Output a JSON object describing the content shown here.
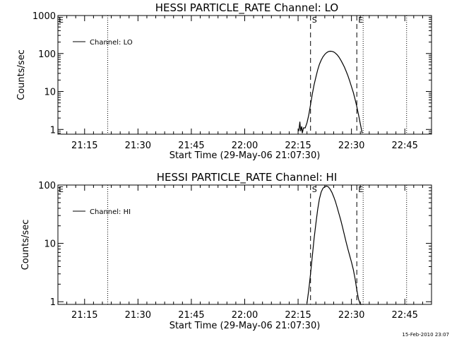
{
  "chart_data": [
    {
      "type": "line",
      "title": "HESSI PARTICLE_RATE Channel: LO",
      "xlabel": "Start Time (29-May-06 21:07:30)",
      "ylabel": "Counts/sec",
      "x_unit": "minutes after 21:07:30",
      "xlim": [
        0,
        105
      ],
      "ylim": [
        0.75,
        1000
      ],
      "yscale": "log",
      "x_ticks": [
        7.5,
        22.5,
        37.5,
        52.5,
        67.5,
        82.5,
        97.5
      ],
      "x_tick_labels": [
        "21:15",
        "21:30",
        "21:45",
        "22:00",
        "22:15",
        "22:30",
        "22:45"
      ],
      "y_ticks": [
        1,
        10,
        100,
        1000
      ],
      "y_tick_labels": [
        "1",
        "10",
        "100",
        "1000"
      ],
      "legend": {
        "label": "Channel: LO",
        "position": "top-left"
      },
      "markers": [
        {
          "label": "S",
          "x": 71,
          "style": "dashed"
        },
        {
          "label": "E",
          "x": 84,
          "style": "dashed-dotted"
        }
      ],
      "dotted_lines_x": [
        14,
        98
      ],
      "left_marker_label": "E",
      "series": [
        {
          "name": "Channel: LO",
          "x": [
            67.7,
            68.0,
            68.2,
            68.5,
            68.7,
            69.0,
            69.5,
            70.0,
            70.5,
            71.0,
            71.5,
            72.0,
            72.5,
            73.0,
            73.5,
            74.0,
            74.5,
            75.0,
            75.5,
            76.0,
            76.5,
            77.0,
            77.5,
            78.0,
            78.5,
            79.0,
            79.5,
            80.0,
            80.5,
            81.0,
            81.5,
            82.0,
            82.5,
            83.0,
            83.5,
            84.0,
            84.5,
            85.0,
            85.5
          ],
          "y": [
            0.9,
            1.6,
            0.9,
            1.2,
            0.8,
            1.1,
            1.1,
            1.5,
            2.4,
            4.5,
            8.5,
            15,
            24,
            37,
            52,
            67,
            82,
            95,
            105,
            112,
            115,
            114,
            110,
            102,
            92,
            80,
            67,
            55,
            44,
            34,
            26,
            19,
            13.5,
            9.5,
            6.3,
            4.0,
            2.4,
            1.4,
            0.8
          ]
        }
      ]
    },
    {
      "type": "line",
      "title": "HESSI PARTICLE_RATE Channel: HI",
      "xlabel": "Start Time (29-May-06 21:07:30)",
      "ylabel": "Counts/sec",
      "x_unit": "minutes after 21:07:30",
      "xlim": [
        0,
        105
      ],
      "ylim": [
        0.9,
        100
      ],
      "yscale": "log",
      "x_ticks": [
        7.5,
        22.5,
        37.5,
        52.5,
        67.5,
        82.5,
        97.5
      ],
      "x_tick_labels": [
        "21:15",
        "21:30",
        "21:45",
        "22:00",
        "22:15",
        "22:30",
        "22:45"
      ],
      "y_ticks": [
        1,
        10,
        100
      ],
      "y_tick_labels": [
        "1",
        "10",
        "100"
      ],
      "legend": {
        "label": "Channel: HI",
        "position": "top-left"
      },
      "markers": [
        {
          "label": "S",
          "x": 71,
          "style": "dashed"
        },
        {
          "label": "E",
          "x": 84,
          "style": "dashed-dotted"
        }
      ],
      "dotted_lines_x": [
        14,
        98
      ],
      "left_marker_label": "E",
      "series": [
        {
          "name": "Channel: HI",
          "x": [
            70.0,
            70.5,
            71.0,
            71.5,
            72.0,
            72.5,
            73.0,
            73.5,
            74.0,
            74.5,
            75.0,
            75.5,
            76.0,
            76.5,
            77.0,
            77.5,
            78.0,
            78.5,
            79.0,
            79.5,
            80.0,
            80.5,
            81.0,
            81.5,
            82.0,
            82.5,
            83.0,
            83.5,
            84.0,
            84.5,
            85.0,
            85.5
          ],
          "y": [
            0.95,
            1.6,
            3.0,
            6.0,
            12,
            22,
            38,
            58,
            76,
            88,
            94,
            96,
            93,
            85,
            75,
            63,
            52,
            41,
            32,
            25,
            19,
            14,
            10.5,
            8.0,
            6.2,
            4.8,
            3.6,
            2.5,
            1.6,
            1.1,
            0.9,
            0.9
          ]
        }
      ]
    }
  ],
  "footer": {
    "timestamp": "15-Feb-2010 23:07"
  }
}
